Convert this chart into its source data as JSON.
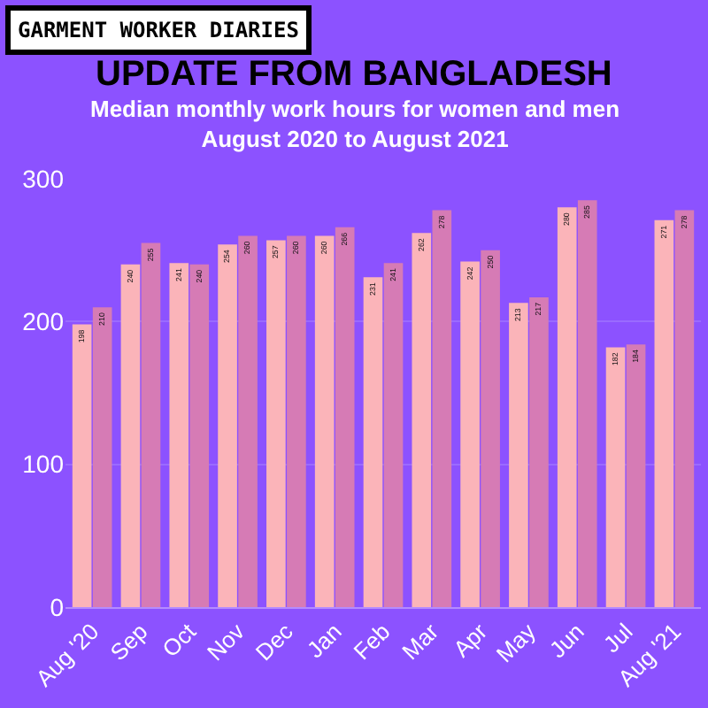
{
  "chart_data": {
    "type": "bar",
    "title": "UPDATE FROM BANGLADESH",
    "subtitle": "Median monthly work hours for women and men\nAugust 2020 to August 2021",
    "annotations": [
      "GARMENT WORKER DIARIES"
    ],
    "categories": [
      "Aug '20",
      "Sep",
      "Oct",
      "Nov",
      "Dec",
      "Jan",
      "Feb",
      "Mar",
      "Apr",
      "May",
      "Jun",
      "Jul",
      "Aug '21"
    ],
    "series": [
      {
        "color": "#fbb4b9",
        "values": [
          198,
          240,
          241,
          254,
          257,
          260,
          231,
          262,
          242,
          213,
          280,
          182,
          271
        ]
      },
      {
        "color": "#d67bb5",
        "values": [
          210,
          255,
          240,
          260,
          260,
          266,
          241,
          278,
          250,
          217,
          285,
          184,
          278
        ]
      }
    ],
    "ylim": [
      0,
      300
    ],
    "yticks": [
      0,
      100,
      200,
      300
    ],
    "grid": "y",
    "data_labels": true
  }
}
